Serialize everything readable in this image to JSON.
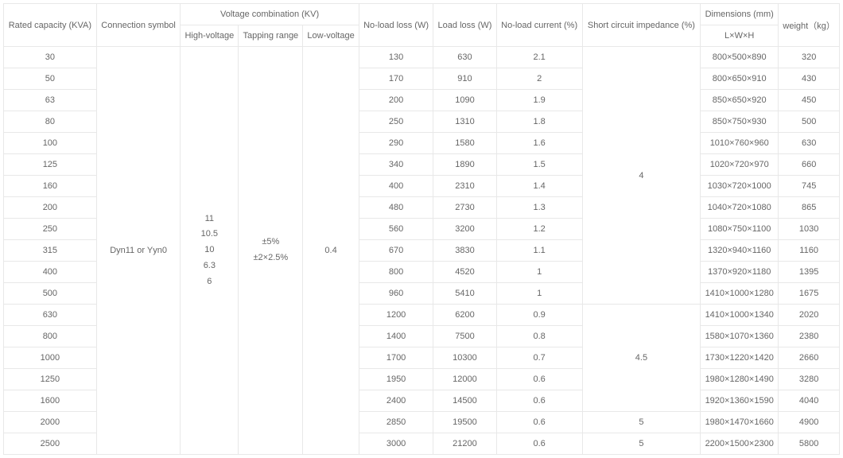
{
  "headers": {
    "rated_capacity": "Rated capacity (KVA)",
    "connection_symbol": "Connection symbol",
    "voltage_combination": "Voltage combination (KV)",
    "high_voltage": "High-voltage",
    "tapping_range": "Tapping range",
    "low_voltage": "Low-voltage",
    "no_load_loss": "No-load loss (W)",
    "load_loss": "Load loss (W)",
    "no_load_current": "No-load current (%)",
    "short_circuit": "Short circuit impedance (%)",
    "dimensions": "Dimensions (mm)",
    "dimensions_sub": "L×W×H",
    "weight": "weight（kg）"
  },
  "merged": {
    "connection_symbol": "Dyn11 or Yyn0",
    "high_voltage_lines": [
      "11",
      "10.5",
      "10",
      "6.3",
      "6"
    ],
    "tapping_range_lines": [
      "±5%",
      "±2×2.5%"
    ],
    "low_voltage": "0.4",
    "impedance_4": "4",
    "impedance_4_5": "4.5",
    "impedance_5a": "5",
    "impedance_5b": "5"
  },
  "rows": [
    {
      "capacity": "30",
      "noload": "130",
      "loadloss": "630",
      "nocurrent": "2.1",
      "dims": "800×500×890",
      "weight": "320"
    },
    {
      "capacity": "50",
      "noload": "170",
      "loadloss": "910",
      "nocurrent": "2",
      "dims": "800×650×910",
      "weight": "430"
    },
    {
      "capacity": "63",
      "noload": "200",
      "loadloss": "1090",
      "nocurrent": "1.9",
      "dims": "850×650×920",
      "weight": "450"
    },
    {
      "capacity": "80",
      "noload": "250",
      "loadloss": "1310",
      "nocurrent": "1.8",
      "dims": "850×750×930",
      "weight": "500"
    },
    {
      "capacity": "100",
      "noload": "290",
      "loadloss": "1580",
      "nocurrent": "1.6",
      "dims": "1010×760×960",
      "weight": "630"
    },
    {
      "capacity": "125",
      "noload": "340",
      "loadloss": "1890",
      "nocurrent": "1.5",
      "dims": "1020×720×970",
      "weight": "660"
    },
    {
      "capacity": "160",
      "noload": "400",
      "loadloss": "2310",
      "nocurrent": "1.4",
      "dims": "1030×720×1000",
      "weight": "745"
    },
    {
      "capacity": "200",
      "noload": "480",
      "loadloss": "2730",
      "nocurrent": "1.3",
      "dims": "1040×720×1080",
      "weight": "865"
    },
    {
      "capacity": "250",
      "noload": "560",
      "loadloss": "3200",
      "nocurrent": "1.2",
      "dims": "1080×750×1100",
      "weight": "1030"
    },
    {
      "capacity": "315",
      "noload": "670",
      "loadloss": "3830",
      "nocurrent": "1.1",
      "dims": "1320×940×1160",
      "weight": "1160"
    },
    {
      "capacity": "400",
      "noload": "800",
      "loadloss": "4520",
      "nocurrent": "1",
      "dims": "1370×920×1180",
      "weight": "1395"
    },
    {
      "capacity": "500",
      "noload": "960",
      "loadloss": "5410",
      "nocurrent": "1",
      "dims": "1410×1000×1280",
      "weight": "1675"
    },
    {
      "capacity": "630",
      "noload": "1200",
      "loadloss": "6200",
      "nocurrent": "0.9",
      "dims": "1410×1000×1340",
      "weight": "2020"
    },
    {
      "capacity": "800",
      "noload": "1400",
      "loadloss": "7500",
      "nocurrent": "0.8",
      "dims": "1580×1070×1360",
      "weight": "2380"
    },
    {
      "capacity": "1000",
      "noload": "1700",
      "loadloss": "10300",
      "nocurrent": "0.7",
      "dims": "1730×1220×1420",
      "weight": "2660"
    },
    {
      "capacity": "1250",
      "noload": "1950",
      "loadloss": "12000",
      "nocurrent": "0.6",
      "dims": "1980×1280×1490",
      "weight": "3280"
    },
    {
      "capacity": "1600",
      "noload": "2400",
      "loadloss": "14500",
      "nocurrent": "0.6",
      "dims": "1920×1360×1590",
      "weight": "4040"
    },
    {
      "capacity": "2000",
      "noload": "2850",
      "loadloss": "19500",
      "nocurrent": "0.6",
      "dims": "1980×1470×1660",
      "weight": "4900"
    },
    {
      "capacity": "2500",
      "noload": "3000",
      "loadloss": "21200",
      "nocurrent": "0.6",
      "dims": "2200×1500×2300",
      "weight": "5800"
    }
  ],
  "colors": {
    "border": "#e8e8e8",
    "text": "#666666",
    "background": "#ffffff"
  }
}
